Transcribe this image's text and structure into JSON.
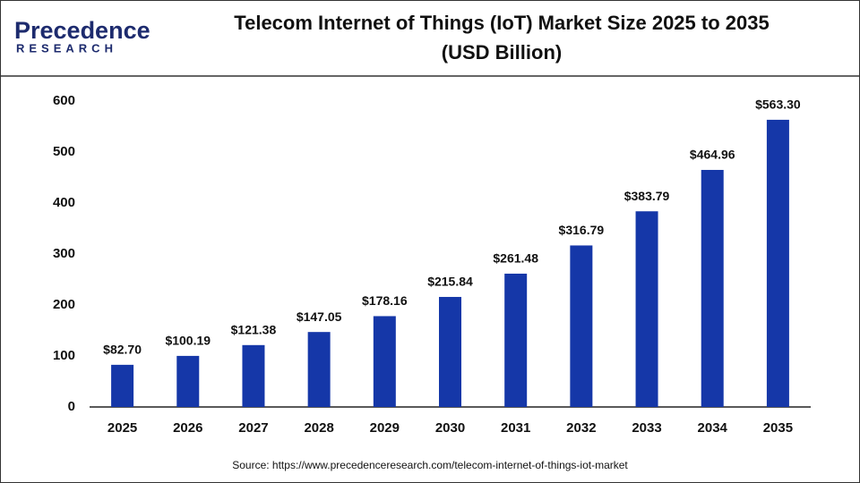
{
  "logo": {
    "name": "Precedence",
    "sub": "RESEARCH"
  },
  "chart_data": {
    "type": "bar",
    "title": "Telecom Internet of Things (IoT) Market Size 2025 to 2035",
    "subtitle": "(USD Billion)",
    "categories": [
      "2025",
      "2026",
      "2027",
      "2028",
      "2029",
      "2030",
      "2031",
      "2032",
      "2033",
      "2034",
      "2035"
    ],
    "values": [
      82.7,
      100.19,
      121.38,
      147.05,
      178.16,
      215.84,
      261.48,
      316.79,
      383.79,
      464.96,
      563.3
    ],
    "value_labels": [
      "$82.70",
      "$100.19",
      "$121.38",
      "$147.05",
      "$178.16",
      "$215.84",
      "$261.48",
      "$316.79",
      "$383.79",
      "$464.96",
      "$563.30"
    ],
    "color": "#1537a8",
    "ylim": [
      0,
      600
    ],
    "yticks": [
      0,
      100,
      200,
      300,
      400,
      500,
      600
    ],
    "grid": false
  },
  "source": "Source: https://www.precedenceresearch.com/telecom-internet-of-things-iot-market"
}
